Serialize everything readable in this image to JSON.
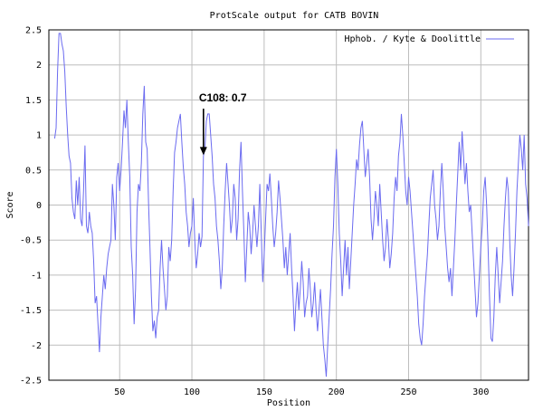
{
  "chart_data": {
    "type": "line",
    "title": "ProtScale output for CATB BOVIN",
    "xlabel": "Position",
    "ylabel": "Score",
    "xlim": [
      1,
      333
    ],
    "ylim": [
      -2.5,
      2.5
    ],
    "xticks": [
      50,
      100,
      150,
      200,
      250,
      300
    ],
    "yticks": [
      -2.5,
      -2,
      -1.5,
      -1,
      -0.5,
      0,
      0.5,
      1,
      1.5,
      2,
      2.5
    ],
    "grid": true,
    "legend": "top-right",
    "series": [
      {
        "name": "Hphob. / Kyte & Doolittle",
        "color": "#6b6bf0",
        "points": [
          [
            5,
            0.95
          ],
          [
            6,
            1.1
          ],
          [
            7,
            1.9
          ],
          [
            8,
            2.45
          ],
          [
            9,
            2.45
          ],
          [
            10,
            2.3
          ],
          [
            11,
            2.2
          ],
          [
            12,
            1.9
          ],
          [
            13,
            1.4
          ],
          [
            14,
            1.0
          ],
          [
            15,
            0.7
          ],
          [
            16,
            0.6
          ],
          [
            17,
            0.1
          ],
          [
            18,
            -0.1
          ],
          [
            19,
            -0.2
          ],
          [
            20,
            0.35
          ],
          [
            21,
            0.0
          ],
          [
            22,
            0.4
          ],
          [
            23,
            -0.2
          ],
          [
            24,
            -0.3
          ],
          [
            25,
            0.2
          ],
          [
            26,
            0.85
          ],
          [
            27,
            -0.3
          ],
          [
            28,
            -0.4
          ],
          [
            29,
            -0.1
          ],
          [
            30,
            -0.3
          ],
          [
            31,
            -0.4
          ],
          [
            32,
            -0.8
          ],
          [
            33,
            -1.4
          ],
          [
            34,
            -1.3
          ],
          [
            35,
            -1.7
          ],
          [
            36,
            -2.1
          ],
          [
            37,
            -1.6
          ],
          [
            38,
            -1.3
          ],
          [
            39,
            -1.0
          ],
          [
            40,
            -1.2
          ],
          [
            41,
            -0.9
          ],
          [
            42,
            -0.7
          ],
          [
            43,
            -0.6
          ],
          [
            44,
            -0.5
          ],
          [
            45,
            0.3
          ],
          [
            46,
            0.0
          ],
          [
            47,
            -0.5
          ],
          [
            48,
            0.4
          ],
          [
            49,
            0.6
          ],
          [
            50,
            0.2
          ],
          [
            51,
            0.5
          ],
          [
            52,
            0.9
          ],
          [
            53,
            1.35
          ],
          [
            54,
            1.1
          ],
          [
            55,
            1.5
          ],
          [
            56,
            0.9
          ],
          [
            57,
            0.4
          ],
          [
            58,
            -0.6
          ],
          [
            59,
            -1.0
          ],
          [
            60,
            -1.7
          ],
          [
            61,
            -1.2
          ],
          [
            62,
            -0.1
          ],
          [
            63,
            0.3
          ],
          [
            64,
            0.2
          ],
          [
            65,
            0.6
          ],
          [
            66,
            1.3
          ],
          [
            67,
            1.7
          ],
          [
            68,
            0.9
          ],
          [
            69,
            0.8
          ],
          [
            70,
            0.0
          ],
          [
            71,
            -0.6
          ],
          [
            72,
            -1.3
          ],
          [
            73,
            -1.8
          ],
          [
            74,
            -1.65
          ],
          [
            75,
            -1.9
          ],
          [
            76,
            -1.6
          ],
          [
            77,
            -1.5
          ],
          [
            78,
            -0.9
          ],
          [
            79,
            -0.5
          ],
          [
            80,
            -0.9
          ],
          [
            81,
            -1.2
          ],
          [
            82,
            -1.5
          ],
          [
            83,
            -1.3
          ],
          [
            84,
            -0.6
          ],
          [
            85,
            -0.8
          ],
          [
            86,
            -0.5
          ],
          [
            87,
            0.2
          ],
          [
            88,
            0.75
          ],
          [
            89,
            0.9
          ],
          [
            90,
            1.1
          ],
          [
            91,
            1.2
          ],
          [
            92,
            1.3
          ],
          [
            93,
            0.9
          ],
          [
            94,
            0.55
          ],
          [
            95,
            0.3
          ],
          [
            96,
            -0.1
          ],
          [
            97,
            -0.3
          ],
          [
            98,
            -0.6
          ],
          [
            99,
            -0.4
          ],
          [
            100,
            -0.3
          ],
          [
            101,
            0.1
          ],
          [
            102,
            -0.5
          ],
          [
            103,
            -0.9
          ],
          [
            104,
            -0.7
          ],
          [
            105,
            -0.4
          ],
          [
            106,
            -0.6
          ],
          [
            107,
            -0.45
          ],
          [
            108,
            0.7
          ],
          [
            109,
            0.8
          ],
          [
            110,
            1.2
          ],
          [
            111,
            1.3
          ],
          [
            112,
            1.3
          ],
          [
            113,
            1.0
          ],
          [
            114,
            0.7
          ],
          [
            115,
            0.3
          ],
          [
            116,
            0.1
          ],
          [
            117,
            -0.3
          ],
          [
            118,
            -0.5
          ],
          [
            119,
            -0.8
          ],
          [
            120,
            -1.2
          ],
          [
            121,
            -0.9
          ],
          [
            122,
            -0.3
          ],
          [
            123,
            0.2
          ],
          [
            124,
            0.6
          ],
          [
            125,
            0.3
          ],
          [
            126,
            0.0
          ],
          [
            127,
            -0.4
          ],
          [
            128,
            -0.2
          ],
          [
            129,
            0.3
          ],
          [
            130,
            0.1
          ],
          [
            131,
            -0.5
          ],
          [
            132,
            -0.2
          ],
          [
            133,
            0.5
          ],
          [
            134,
            0.9
          ],
          [
            135,
            0.2
          ],
          [
            136,
            -0.4
          ],
          [
            137,
            -1.1
          ],
          [
            138,
            -0.6
          ],
          [
            139,
            -0.1
          ],
          [
            140,
            -0.3
          ],
          [
            141,
            -0.7
          ],
          [
            142,
            -0.4
          ],
          [
            143,
            0.0
          ],
          [
            144,
            -0.3
          ],
          [
            145,
            -0.6
          ],
          [
            146,
            -0.3
          ],
          [
            147,
            0.3
          ],
          [
            148,
            -0.4
          ],
          [
            149,
            -1.1
          ],
          [
            150,
            -0.7
          ],
          [
            151,
            -0.2
          ],
          [
            152,
            0.3
          ],
          [
            153,
            0.2
          ],
          [
            154,
            0.45
          ],
          [
            155,
            0.1
          ],
          [
            156,
            -0.3
          ],
          [
            157,
            -0.6
          ],
          [
            158,
            -0.4
          ],
          [
            159,
            -0.1
          ],
          [
            160,
            0.35
          ],
          [
            161,
            0.1
          ],
          [
            162,
            -0.2
          ],
          [
            163,
            -0.5
          ],
          [
            164,
            -0.9
          ],
          [
            165,
            -0.6
          ],
          [
            166,
            -1.0
          ],
          [
            167,
            -0.7
          ],
          [
            168,
            -0.4
          ],
          [
            169,
            -0.9
          ],
          [
            170,
            -1.3
          ],
          [
            171,
            -1.8
          ],
          [
            172,
            -1.4
          ],
          [
            173,
            -1.1
          ],
          [
            174,
            -1.5
          ],
          [
            175,
            -1.2
          ],
          [
            176,
            -0.8
          ],
          [
            177,
            -1.1
          ],
          [
            178,
            -1.6
          ],
          [
            179,
            -1.4
          ],
          [
            180,
            -1.3
          ],
          [
            181,
            -0.9
          ],
          [
            182,
            -1.2
          ],
          [
            183,
            -1.6
          ],
          [
            184,
            -1.4
          ],
          [
            185,
            -1.1
          ],
          [
            186,
            -1.5
          ],
          [
            187,
            -1.8
          ],
          [
            188,
            -1.5
          ],
          [
            189,
            -1.2
          ],
          [
            190,
            -1.6
          ],
          [
            191,
            -2.0
          ],
          [
            192,
            -2.2
          ],
          [
            193,
            -2.45
          ],
          [
            194,
            -2.0
          ],
          [
            195,
            -1.6
          ],
          [
            196,
            -1.2
          ],
          [
            197,
            -0.7
          ],
          [
            198,
            -0.3
          ],
          [
            199,
            0.4
          ],
          [
            200,
            0.8
          ],
          [
            201,
            0.3
          ],
          [
            202,
            -0.4
          ],
          [
            203,
            -0.8
          ],
          [
            204,
            -1.3
          ],
          [
            205,
            -0.9
          ],
          [
            206,
            -0.5
          ],
          [
            207,
            -1.0
          ],
          [
            208,
            -0.6
          ],
          [
            209,
            -1.2
          ],
          [
            210,
            -0.8
          ],
          [
            211,
            -0.4
          ],
          [
            212,
            0.0
          ],
          [
            213,
            0.3
          ],
          [
            214,
            0.65
          ],
          [
            215,
            0.5
          ],
          [
            216,
            0.85
          ],
          [
            217,
            1.1
          ],
          [
            218,
            1.2
          ],
          [
            219,
            0.8
          ],
          [
            220,
            0.4
          ],
          [
            221,
            0.6
          ],
          [
            222,
            0.8
          ],
          [
            223,
            0.4
          ],
          [
            224,
            -0.2
          ],
          [
            225,
            -0.5
          ],
          [
            226,
            -0.2
          ],
          [
            227,
            0.2
          ],
          [
            228,
            0.0
          ],
          [
            229,
            -0.3
          ],
          [
            230,
            0.3
          ],
          [
            231,
            -0.1
          ],
          [
            232,
            -0.5
          ],
          [
            233,
            -0.8
          ],
          [
            234,
            -0.6
          ],
          [
            235,
            -0.2
          ],
          [
            236,
            -0.5
          ],
          [
            237,
            -0.9
          ],
          [
            238,
            -0.7
          ],
          [
            239,
            -0.4
          ],
          [
            240,
            0.1
          ],
          [
            241,
            0.4
          ],
          [
            242,
            0.2
          ],
          [
            243,
            0.7
          ],
          [
            244,
            0.9
          ],
          [
            245,
            1.3
          ],
          [
            246,
            1.0
          ],
          [
            247,
            0.6
          ],
          [
            248,
            0.2
          ],
          [
            249,
            0.0
          ],
          [
            250,
            0.4
          ],
          [
            251,
            0.2
          ],
          [
            252,
            -0.1
          ],
          [
            253,
            -0.4
          ],
          [
            254,
            -0.7
          ],
          [
            255,
            -1.0
          ],
          [
            256,
            -1.3
          ],
          [
            257,
            -1.7
          ],
          [
            258,
            -1.9
          ],
          [
            259,
            -2.0
          ],
          [
            260,
            -1.7
          ],
          [
            261,
            -1.3
          ],
          [
            262,
            -1.0
          ],
          [
            263,
            -0.7
          ],
          [
            264,
            -0.3
          ],
          [
            265,
            0.1
          ],
          [
            266,
            0.3
          ],
          [
            267,
            0.5
          ],
          [
            268,
            0.0
          ],
          [
            269,
            -0.2
          ],
          [
            270,
            -0.5
          ],
          [
            271,
            -0.3
          ],
          [
            272,
            0.2
          ],
          [
            273,
            0.6
          ],
          [
            274,
            0.2
          ],
          [
            275,
            -0.3
          ],
          [
            276,
            -0.6
          ],
          [
            277,
            -0.9
          ],
          [
            278,
            -1.1
          ],
          [
            279,
            -0.9
          ],
          [
            280,
            -1.3
          ],
          [
            281,
            -0.9
          ],
          [
            282,
            -0.5
          ],
          [
            283,
            0.0
          ],
          [
            284,
            0.45
          ],
          [
            285,
            0.9
          ],
          [
            286,
            0.5
          ],
          [
            287,
            1.05
          ],
          [
            288,
            0.7
          ],
          [
            289,
            0.3
          ],
          [
            290,
            0.6
          ],
          [
            291,
            0.2
          ],
          [
            292,
            -0.1
          ],
          [
            293,
            0.0
          ],
          [
            294,
            -0.4
          ],
          [
            295,
            -0.8
          ],
          [
            296,
            -1.2
          ],
          [
            297,
            -1.6
          ],
          [
            298,
            -1.4
          ],
          [
            299,
            -1.0
          ],
          [
            300,
            -0.6
          ],
          [
            301,
            -0.3
          ],
          [
            302,
            0.2
          ],
          [
            303,
            0.4
          ],
          [
            304,
            0.0
          ],
          [
            305,
            -0.6
          ],
          [
            306,
            -1.3
          ],
          [
            307,
            -1.9
          ],
          [
            308,
            -1.95
          ],
          [
            309,
            -1.6
          ],
          [
            310,
            -1.0
          ],
          [
            311,
            -0.6
          ],
          [
            312,
            -1.0
          ],
          [
            313,
            -1.4
          ],
          [
            314,
            -1.1
          ],
          [
            315,
            -0.8
          ],
          [
            316,
            -0.3
          ],
          [
            317,
            0.1
          ],
          [
            318,
            0.4
          ],
          [
            319,
            0.2
          ],
          [
            320,
            -0.5
          ],
          [
            321,
            -1.0
          ],
          [
            322,
            -1.3
          ],
          [
            323,
            -0.9
          ],
          [
            324,
            -0.4
          ],
          [
            325,
            0.2
          ],
          [
            326,
            0.6
          ],
          [
            327,
            1.0
          ],
          [
            328,
            0.8
          ],
          [
            329,
            0.5
          ],
          [
            330,
            1.0
          ],
          [
            331,
            0.3
          ],
          [
            332,
            0.1
          ],
          [
            333,
            -0.3
          ]
        ]
      }
    ],
    "annotations": [
      {
        "text": "C108: 0.7",
        "x": 108,
        "y": 0.7
      }
    ]
  }
}
